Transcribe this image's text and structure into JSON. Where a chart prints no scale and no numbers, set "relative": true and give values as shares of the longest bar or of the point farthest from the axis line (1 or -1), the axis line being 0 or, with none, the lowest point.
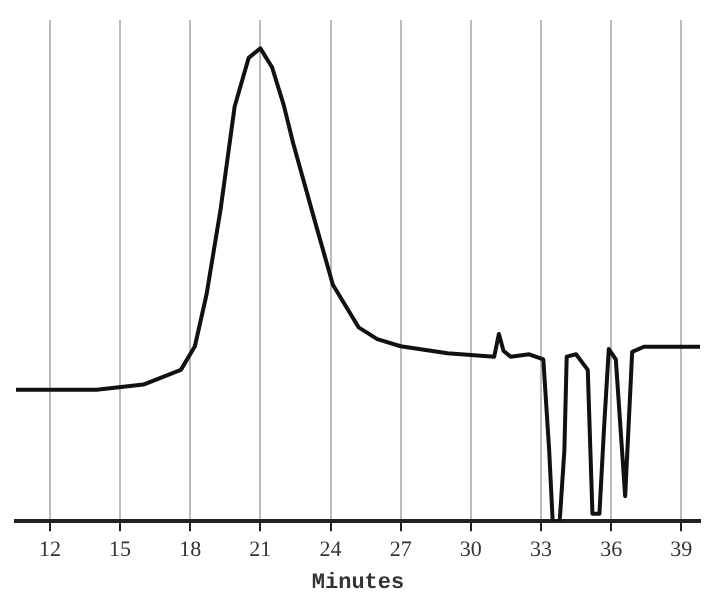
{
  "chart_data": {
    "type": "line",
    "xlabel": "Minutes",
    "relative": true,
    "color": "#111111",
    "x": [
      10.55,
      14,
      16,
      17.6,
      18.2,
      18.7,
      19.3,
      19.9,
      20.5,
      21,
      21.5,
      22,
      22.4,
      23.3,
      24.1,
      25.2,
      26,
      27,
      29,
      31,
      31.2,
      31.4,
      31.7,
      32.5,
      33.1,
      33.35,
      33.5,
      33.8,
      34.0,
      34.1,
      34.5,
      35.0,
      35.2,
      35.5,
      35.7,
      35.9,
      36.2,
      36.6,
      36.9,
      37.4,
      39.8
    ],
    "values": [
      0.278,
      0.278,
      0.289,
      0.32,
      0.37,
      0.48,
      0.66,
      0.877,
      0.98,
      1,
      0.96,
      0.88,
      0.8,
      0.64,
      0.5,
      0.41,
      0.385,
      0.37,
      0.355,
      0.348,
      0.396,
      0.36,
      0.348,
      0.353,
      0.342,
      0.15,
      0,
      0,
      0.15,
      0.348,
      0.353,
      0.32,
      0.016,
      0.016,
      0.2,
      0.364,
      0.342,
      0.053,
      0.358,
      0.369,
      0.369
    ],
    "xlim": [
      10.55,
      39.8
    ],
    "xticks": [
      12,
      15,
      18,
      21,
      24,
      27,
      30,
      33,
      36,
      39
    ],
    "grid": "x",
    "marker": "none",
    "line_style": "solid"
  }
}
